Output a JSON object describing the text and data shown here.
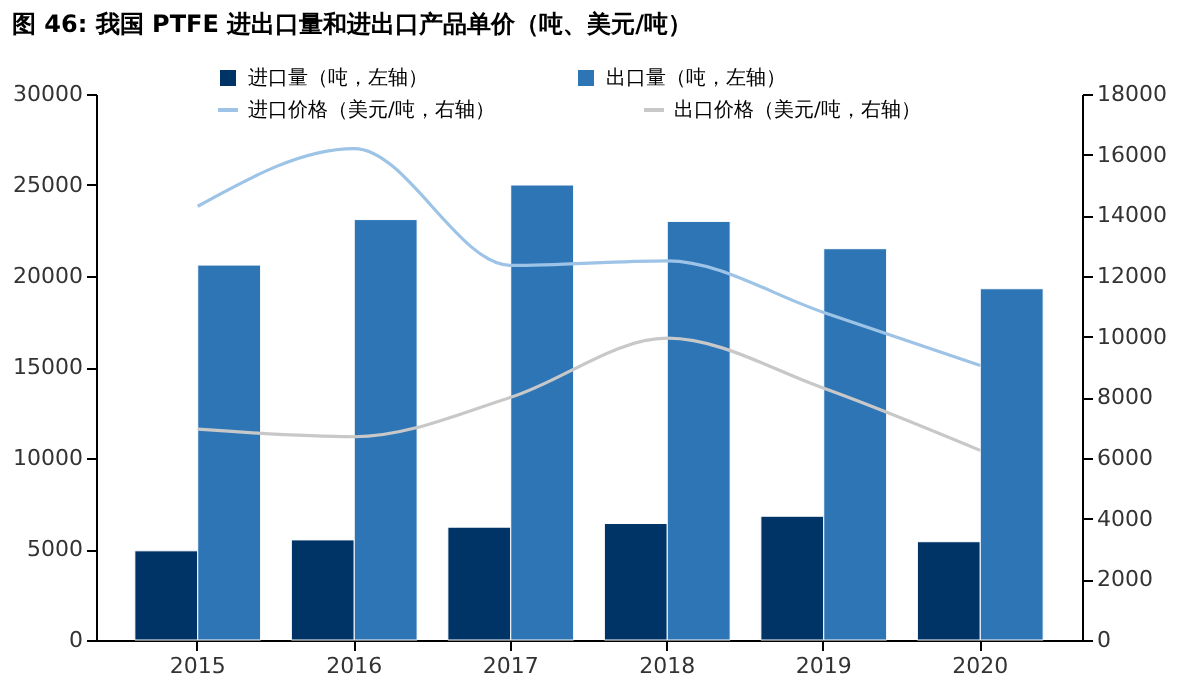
{
  "chart_data": {
    "type": "bar",
    "title": "图 46: 我国 PTFE 进出口量和进出口产品单价（吨、美元/吨）",
    "categories": [
      "2015",
      "2016",
      "2017",
      "2018",
      "2019",
      "2020"
    ],
    "series": [
      {
        "name": "进口量（吨，左轴）",
        "color": "#003366",
        "values": [
          4900,
          5500,
          6200,
          6400,
          6800,
          5400
        ]
      },
      {
        "name": "出口量（吨，左轴）",
        "color": "#2e75b6",
        "values": [
          20600,
          23100,
          25000,
          23000,
          21500,
          19300
        ]
      },
      {
        "name": "进口价格（美元/吨，右轴）",
        "type": "line",
        "axis": "y2",
        "color": "#9dc3e6",
        "values": [
          14300,
          16200,
          12350,
          12500,
          10800,
          9050
        ]
      },
      {
        "name": "出口价格（美元/吨，右轴）",
        "type": "line",
        "axis": "y2",
        "color": "#c8c8c8",
        "values": [
          6950,
          6700,
          8000,
          9950,
          8300,
          6250
        ]
      }
    ],
    "ylim": [
      0,
      30000
    ],
    "yticks": [
      0,
      5000,
      10000,
      15000,
      20000,
      25000,
      30000
    ],
    "y2lim": [
      0,
      18000
    ],
    "y2ticks": [
      0,
      2000,
      4000,
      6000,
      8000,
      10000,
      12000,
      14000,
      16000,
      18000
    ],
    "legend": "top",
    "grid": false
  }
}
